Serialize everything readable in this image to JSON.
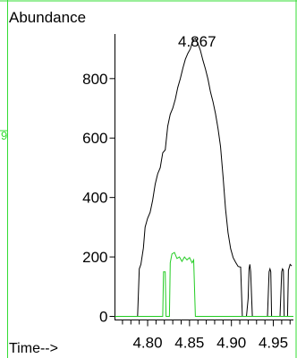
{
  "chart_data": {
    "type": "line",
    "ylabel": "Abundance",
    "xlabel": "Time-->",
    "peak_label": "4.867",
    "side_mark": "9",
    "colors": {
      "frame": "#33dd33",
      "series_black": "#000000",
      "series_green": "#22cc22"
    },
    "xlim": [
      4.761,
      4.974
    ],
    "ylim": [
      -12,
      950
    ],
    "x_ticks": [
      4.8,
      4.85,
      4.9,
      4.95
    ],
    "x_tick_labels": [
      "4.80",
      "4.85",
      "4.90",
      "4.95"
    ],
    "x_minor_step": 0.01,
    "y_ticks": [
      0,
      200,
      400,
      600,
      800
    ],
    "y_tick_labels": [
      "0",
      "200",
      "400",
      "600",
      "800"
    ],
    "series": [
      {
        "color": "#000000",
        "points": [
          [
            4.788,
            0
          ],
          [
            4.79,
            160
          ],
          [
            4.792,
            175
          ],
          [
            4.795,
            230
          ],
          [
            4.797,
            300
          ],
          [
            4.8,
            330
          ],
          [
            4.803,
            350
          ],
          [
            4.806,
            390
          ],
          [
            4.809,
            445
          ],
          [
            4.812,
            480
          ],
          [
            4.815,
            500
          ],
          [
            4.818,
            550
          ],
          [
            4.821,
            560
          ],
          [
            4.824,
            640
          ],
          [
            4.827,
            680
          ],
          [
            4.83,
            700
          ],
          [
            4.833,
            730
          ],
          [
            4.836,
            770
          ],
          [
            4.839,
            800
          ],
          [
            4.842,
            835
          ],
          [
            4.845,
            865
          ],
          [
            4.848,
            885
          ],
          [
            4.851,
            900
          ],
          [
            4.854,
            930
          ],
          [
            4.857,
            935
          ],
          [
            4.86,
            918
          ],
          [
            4.863,
            895
          ],
          [
            4.866,
            862
          ],
          [
            4.869,
            832
          ],
          [
            4.872,
            798
          ],
          [
            4.875,
            755
          ],
          [
            4.878,
            722
          ],
          [
            4.881,
            682
          ],
          [
            4.884,
            632
          ],
          [
            4.887,
            572
          ],
          [
            4.89,
            472
          ],
          [
            4.893,
            362
          ],
          [
            4.896,
            282
          ],
          [
            4.899,
            228
          ],
          [
            4.902,
            198
          ],
          [
            4.905,
            182
          ],
          [
            4.908,
            168
          ],
          [
            4.911,
            166
          ],
          [
            4.913,
            0
          ],
          [
            4.918,
            0
          ],
          [
            4.92,
            60
          ],
          [
            4.921,
            160
          ],
          [
            4.922,
            175
          ],
          [
            4.923,
            150
          ],
          [
            4.924,
            70
          ],
          [
            4.925,
            0
          ],
          [
            4.943,
            0
          ],
          [
            4.945,
            150
          ],
          [
            4.946,
            160
          ],
          [
            4.947,
            150
          ],
          [
            4.948,
            0
          ],
          [
            4.958,
            0
          ],
          [
            4.96,
            150
          ],
          [
            4.961,
            160
          ],
          [
            4.962,
            155
          ],
          [
            4.963,
            0
          ],
          [
            4.967,
            0
          ],
          [
            4.968,
            155
          ],
          [
            4.97,
            175
          ],
          [
            4.972,
            170
          ]
        ]
      },
      {
        "color": "#22cc22",
        "points": [
          [
            4.761,
            0
          ],
          [
            4.818,
            0
          ],
          [
            4.819,
            150
          ],
          [
            4.821,
            150
          ],
          [
            4.822,
            0
          ],
          [
            4.826,
            0
          ],
          [
            4.827,
            180
          ],
          [
            4.829,
            210
          ],
          [
            4.832,
            215
          ],
          [
            4.835,
            195
          ],
          [
            4.838,
            200
          ],
          [
            4.841,
            185
          ],
          [
            4.844,
            200
          ],
          [
            4.847,
            190
          ],
          [
            4.85,
            198
          ],
          [
            4.853,
            180
          ],
          [
            4.855,
            190
          ],
          [
            4.857,
            0
          ],
          [
            4.974,
            0
          ]
        ]
      }
    ]
  }
}
